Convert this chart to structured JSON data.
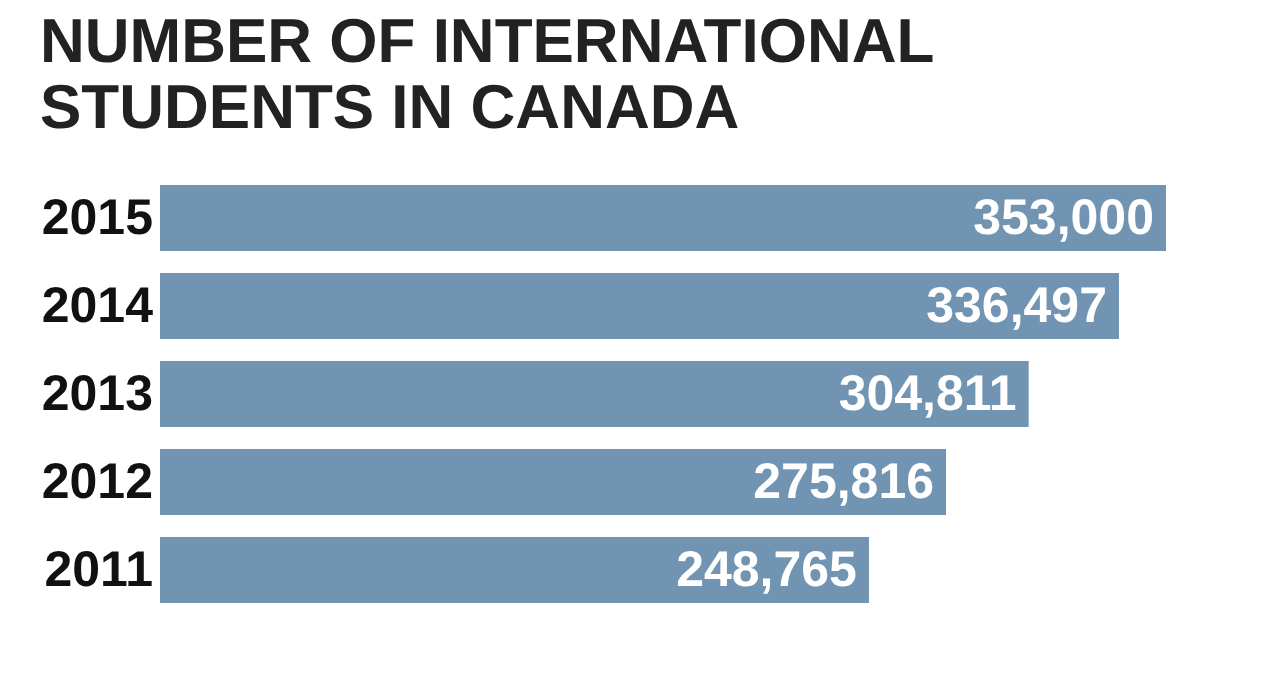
{
  "chart_data": {
    "type": "bar",
    "orientation": "horizontal",
    "title": "NUMBER OF INTERNATIONAL STUDENTS IN CANADA",
    "categories": [
      "2015",
      "2014",
      "2013",
      "2012",
      "2011"
    ],
    "values": [
      353000,
      336497,
      304811,
      275816,
      248765
    ],
    "value_labels": [
      "353,000",
      "336,497",
      "304,811",
      "275,816",
      "248,765"
    ],
    "color": "#7094b1",
    "grid": false
  }
}
